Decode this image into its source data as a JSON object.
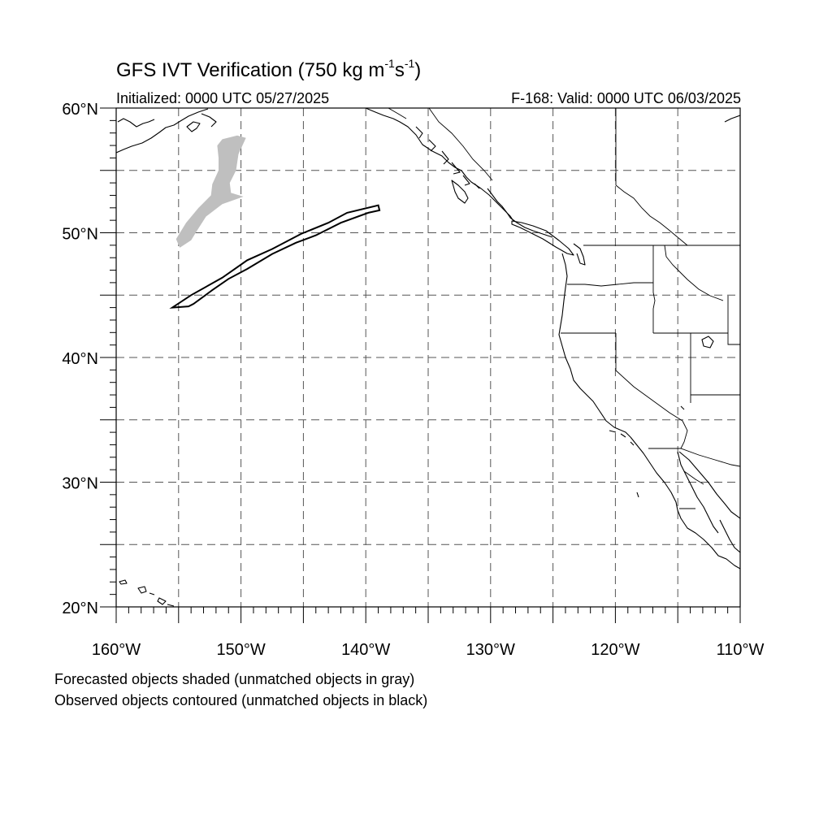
{
  "title": {
    "prefix": "GFS IVT Verification (750 kg m",
    "exp1": "-1",
    "mid": "s",
    "exp2": "-1",
    "suffix": ")"
  },
  "initialized": "Initialized: 0000 UTC 05/27/2025",
  "valid": "F-168: Valid: 0000 UTC 06/03/2025",
  "footnotes": [
    "Forecasted objects shaded (unmatched objects in gray)",
    "Observed objects contoured (unmatched objects in black)"
  ],
  "map": {
    "extent": {
      "lon_min": -160,
      "lon_max": -110,
      "lat_min": 20,
      "lat_max": 60
    },
    "grid": "dashed, every 5 degrees",
    "lat_labels": [
      "60°N",
      "50°N",
      "40°N",
      "30°N",
      "20°N"
    ],
    "lon_labels": [
      "160°W",
      "150°W",
      "140°W",
      "130°W",
      "120°W",
      "110°W"
    ],
    "colors": {
      "forecast_shading": "#bfbfbf",
      "observed_contour": "#000000"
    },
    "forecast_object": {
      "status": "unmatched",
      "outline": [
        [
          -151.5,
          57.5
        ],
        [
          -150.3,
          57.8
        ],
        [
          -149.6,
          57.6
        ],
        [
          -150.2,
          56.3
        ],
        [
          -150.4,
          55.0
        ],
        [
          -150.9,
          54.0
        ],
        [
          -150.8,
          53.2
        ],
        [
          -149.8,
          52.9
        ],
        [
          -151.5,
          52.3
        ],
        [
          -152.8,
          51.3
        ],
        [
          -153.5,
          50.2
        ],
        [
          -154.0,
          49.4
        ],
        [
          -154.9,
          48.8
        ],
        [
          -155.2,
          49.5
        ],
        [
          -154.4,
          50.8
        ],
        [
          -153.4,
          52.0
        ],
        [
          -152.4,
          53.0
        ],
        [
          -152.3,
          53.9
        ],
        [
          -151.8,
          55.0
        ],
        [
          -151.8,
          56.0
        ],
        [
          -151.9,
          57.0
        ]
      ]
    },
    "observed_object": {
      "status": "unmatched",
      "outline": [
        [
          -155.5,
          44.0
        ],
        [
          -154.0,
          45.0
        ],
        [
          -151.5,
          46.4
        ],
        [
          -149.5,
          47.8
        ],
        [
          -147.5,
          48.7
        ],
        [
          -145.2,
          49.9
        ],
        [
          -143.0,
          50.8
        ],
        [
          -141.5,
          51.6
        ],
        [
          -139.0,
          52.2
        ],
        [
          -138.9,
          51.8
        ],
        [
          -139.8,
          51.6
        ],
        [
          -142.0,
          50.8
        ],
        [
          -144.0,
          49.8
        ],
        [
          -145.6,
          49.2
        ],
        [
          -147.5,
          48.3
        ],
        [
          -149.5,
          47.1
        ],
        [
          -151.0,
          46.3
        ],
        [
          -152.3,
          45.4
        ],
        [
          -153.8,
          44.3
        ],
        [
          -154.2,
          44.1
        ]
      ]
    }
  }
}
